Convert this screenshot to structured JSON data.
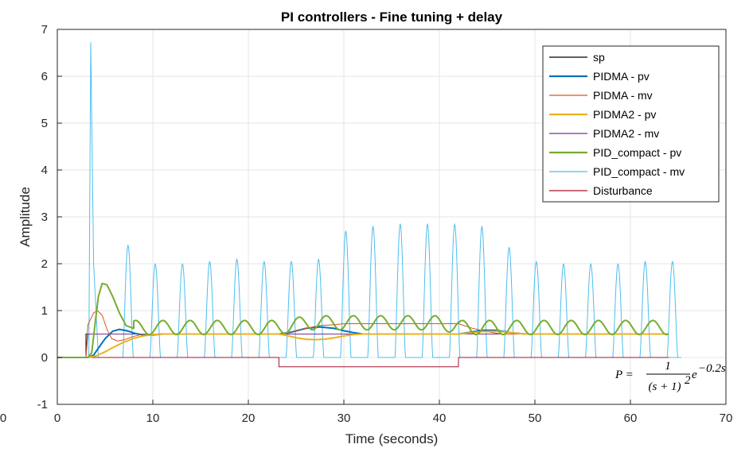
{
  "chart_data": {
    "type": "line",
    "title": "PI controllers - Fine tuning + delay",
    "xlabel": "Time (seconds)",
    "ylabel": "Amplitude",
    "xlim": [
      0,
      70
    ],
    "ylim": [
      -1,
      7
    ],
    "xticks": [
      "0",
      "10",
      "20",
      "30",
      "40",
      "50",
      "60",
      "70"
    ],
    "yticks": [
      "-1",
      "0",
      "1",
      "2",
      "3",
      "4",
      "5",
      "6",
      "7"
    ],
    "extra_x_tick_left": "0",
    "grid": true,
    "legend_position": "top-right",
    "annotation": {
      "lhs": "P =",
      "numerator": "1",
      "den_open": "(s + 1)",
      "den_exp": "2",
      "base": "e",
      "exp": "−0.2s"
    },
    "series": [
      {
        "name": "sp",
        "color": "#000000",
        "width": 1,
        "points": [
          [
            0,
            0
          ],
          [
            3,
            0
          ],
          [
            3,
            0.5
          ],
          [
            64,
            0.5
          ]
        ]
      },
      {
        "name": "PIDMA - pv",
        "color": "#0072BD",
        "width": 2,
        "points": [
          [
            0,
            0
          ],
          [
            3.2,
            0
          ],
          [
            3.8,
            0.05
          ],
          [
            4.3,
            0.2
          ],
          [
            5,
            0.4
          ],
          [
            5.8,
            0.56
          ],
          [
            6.5,
            0.6
          ],
          [
            7.3,
            0.57
          ],
          [
            8.2,
            0.51
          ],
          [
            9,
            0.48
          ],
          [
            10,
            0.48
          ],
          [
            11,
            0.5
          ],
          [
            12,
            0.5
          ],
          [
            23.2,
            0.5
          ],
          [
            24.5,
            0.54
          ],
          [
            26,
            0.62
          ],
          [
            27.5,
            0.65
          ],
          [
            29,
            0.62
          ],
          [
            30,
            0.57
          ],
          [
            31,
            0.53
          ],
          [
            32,
            0.5
          ],
          [
            42,
            0.5
          ],
          [
            43,
            0.53
          ],
          [
            44.5,
            0.58
          ],
          [
            46,
            0.58
          ],
          [
            47.5,
            0.53
          ],
          [
            49,
            0.5
          ],
          [
            64,
            0.5
          ]
        ]
      },
      {
        "name": "PIDMA - mv",
        "color": "#D95319",
        "width": 1,
        "points": [
          [
            0,
            0
          ],
          [
            3,
            0
          ],
          [
            3.2,
            0.7
          ],
          [
            3.8,
            0.95
          ],
          [
            4.2,
            1.0
          ],
          [
            4.7,
            0.9
          ],
          [
            5.2,
            0.6
          ],
          [
            5.7,
            0.4
          ],
          [
            6.3,
            0.35
          ],
          [
            7,
            0.38
          ],
          [
            8,
            0.45
          ],
          [
            9,
            0.5
          ],
          [
            10,
            0.5
          ],
          [
            23.2,
            0.5
          ],
          [
            24.5,
            0.55
          ],
          [
            26,
            0.62
          ],
          [
            27.5,
            0.68
          ],
          [
            29,
            0.7
          ],
          [
            30,
            0.72
          ],
          [
            31,
            0.72
          ],
          [
            42,
            0.72
          ],
          [
            43.5,
            0.62
          ],
          [
            45,
            0.55
          ],
          [
            46.5,
            0.5
          ],
          [
            64,
            0.5
          ]
        ]
      },
      {
        "name": "PIDMA2 - pv",
        "color": "#EDB120",
        "width": 2,
        "points": [
          [
            0,
            0
          ],
          [
            3.2,
            0
          ],
          [
            4,
            0.03
          ],
          [
            5,
            0.12
          ],
          [
            6,
            0.23
          ],
          [
            7,
            0.33
          ],
          [
            8,
            0.41
          ],
          [
            9,
            0.46
          ],
          [
            10,
            0.49
          ],
          [
            11,
            0.5
          ],
          [
            23.2,
            0.5
          ],
          [
            24,
            0.47
          ],
          [
            25,
            0.42
          ],
          [
            26,
            0.39
          ],
          [
            27,
            0.38
          ],
          [
            28,
            0.39
          ],
          [
            29,
            0.42
          ],
          [
            30,
            0.46
          ],
          [
            31,
            0.49
          ],
          [
            32,
            0.5
          ],
          [
            42,
            0.5
          ],
          [
            43,
            0.52
          ],
          [
            44.5,
            0.55
          ],
          [
            46,
            0.56
          ],
          [
            47.5,
            0.53
          ],
          [
            49,
            0.5
          ],
          [
            64,
            0.5
          ]
        ]
      },
      {
        "name": "PIDMA2 - mv",
        "color": "#7E2F8E",
        "width": 1,
        "points": [
          [
            0,
            0
          ],
          [
            3,
            0
          ],
          [
            3.2,
            0.5
          ],
          [
            64,
            0.5
          ]
        ]
      },
      {
        "name": "PID_compact - pv",
        "color": "#77AC30",
        "width": 2,
        "osc_from": 8,
        "osc_period": 2.85,
        "osc_start": 8.2,
        "osc_amp": 0.15,
        "osc_base": 0.64,
        "osc_pulse_amp": 0.1,
        "osc_pulse_start": 23.2,
        "osc_pulse_end": 42,
        "osc_to": 64,
        "points": [
          [
            0,
            0
          ],
          [
            3.2,
            0
          ],
          [
            3.6,
            0.1
          ],
          [
            4,
            0.8
          ],
          [
            4.3,
            1.3
          ],
          [
            4.7,
            1.58
          ],
          [
            5.2,
            1.55
          ],
          [
            5.8,
            1.3
          ],
          [
            6.5,
            0.95
          ],
          [
            7.2,
            0.68
          ],
          [
            8,
            0.62
          ]
        ]
      },
      {
        "name": "PID_compact - mv",
        "color": "#4DBEEE",
        "width": 1,
        "spike_t": 3.5,
        "spike_peak": 6.72,
        "spike_ts": [
          3.3,
          3.5,
          3.8,
          4.3
        ],
        "pulse_first": 7.4,
        "pulse_period": 2.85,
        "pulse_count": 21,
        "pulse_halfwidth": 0.55,
        "pulse_peaks": [
          2.4,
          2.0,
          2.0,
          2.05,
          2.1,
          2.05,
          2.05,
          2.1,
          2.7,
          2.8,
          2.85,
          2.85,
          2.85,
          2.8,
          2.35,
          2.05,
          2.0,
          2.0,
          2.0,
          2.05,
          2.05
        ]
      },
      {
        "name": "Disturbance",
        "color": "#A2142F",
        "width": 1,
        "points": [
          [
            0,
            0
          ],
          [
            23.2,
            0
          ],
          [
            23.2,
            -0.2
          ],
          [
            42,
            -0.2
          ],
          [
            42,
            0
          ],
          [
            64,
            0
          ]
        ]
      }
    ]
  }
}
